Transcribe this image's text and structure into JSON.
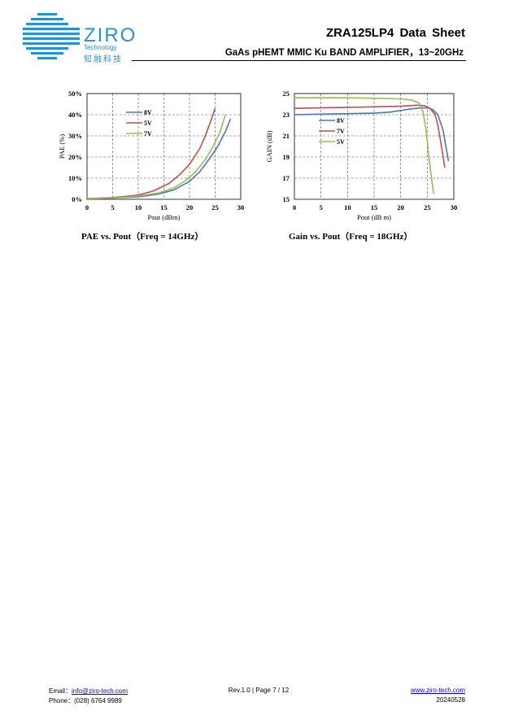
{
  "header": {
    "brand": "ZIRO",
    "brand_sub_en": "Technology",
    "brand_sub_cn": "知融科技",
    "title": "ZRA125LP4  Data  Sheet",
    "subtitle": "GaAs pHEMT MMIC Ku BAND AMPLIFIER，13~20GHz",
    "accent_color": "#2a8fd0"
  },
  "chart_data": [
    {
      "type": "line",
      "caption": "PAE vs. Pout（Freq = 14GHz）",
      "xlabel": "Pout (dBm)",
      "ylabel": "PAE (%)",
      "xlim": [
        0,
        30
      ],
      "ylim": [
        0,
        50
      ],
      "xticks": [
        "0",
        "5",
        "10",
        "15",
        "20",
        "25",
        "30"
      ],
      "yticks": [
        "0%",
        "10%",
        "20%",
        "30%",
        "40%",
        "50%"
      ],
      "grid": "dashed",
      "legend": "top-center",
      "series": [
        {
          "name": "8V",
          "color": "#4a78b5",
          "x": [
            0,
            5,
            10,
            14,
            17,
            20,
            22,
            24,
            25.5,
            27,
            28
          ],
          "y": [
            0.3,
            0.6,
            1.2,
            2.5,
            4.5,
            8.5,
            13,
            19.5,
            25,
            32,
            38
          ]
        },
        {
          "name": "5V",
          "color": "#c0504d",
          "x": [
            0,
            5,
            10,
            13,
            16,
            18,
            20,
            22,
            23,
            24,
            25
          ],
          "y": [
            0.3,
            0.8,
            2,
            4,
            7.5,
            11.5,
            16.5,
            24,
            29.5,
            36,
            43
          ]
        },
        {
          "name": "7V",
          "color": "#9bbb59",
          "x": [
            0,
            5,
            10,
            14,
            17,
            19,
            21,
            23,
            24.5,
            26,
            27
          ],
          "y": [
            0.3,
            0.6,
            1.5,
            3,
            5.5,
            8.5,
            12.5,
            18.5,
            24.5,
            32,
            40
          ]
        }
      ]
    },
    {
      "type": "line",
      "caption": "Gain vs. Pout（Freq = 18GHz）",
      "xlabel": "Pout (dB m)",
      "ylabel": "GAIN (dB)",
      "xlim": [
        0,
        30
      ],
      "ylim": [
        15,
        25
      ],
      "xticks": [
        "0",
        "5",
        "10",
        "15",
        "20",
        "25",
        "30"
      ],
      "yticks": [
        "15",
        "17",
        "19",
        "21",
        "23",
        "25"
      ],
      "grid": "dashed",
      "legend": "center-left",
      "series": [
        {
          "name": "8V",
          "color": "#4a78b5",
          "x": [
            0,
            5,
            10,
            15,
            18,
            20,
            22,
            24,
            25,
            26,
            27,
            28,
            28.5,
            29
          ],
          "y": [
            23.0,
            23.05,
            23.1,
            23.15,
            23.25,
            23.4,
            23.55,
            23.65,
            23.65,
            23.5,
            23.0,
            21.5,
            20.0,
            18.6
          ]
        },
        {
          "name": "7V",
          "color": "#c0504d",
          "x": [
            0,
            5,
            10,
            15,
            20,
            23,
            24.5,
            25.5,
            26.5,
            27,
            27.5,
            28,
            28.3
          ],
          "y": [
            23.6,
            23.65,
            23.7,
            23.75,
            23.8,
            23.9,
            23.85,
            23.6,
            23.0,
            22.0,
            20.5,
            19.0,
            18.0
          ]
        },
        {
          "name": "5V",
          "color": "#9bbb59",
          "x": [
            0,
            5,
            10,
            15,
            20,
            22,
            23.5,
            24.2,
            24.8,
            25.3,
            25.8,
            26.2
          ],
          "y": [
            24.6,
            24.6,
            24.6,
            24.55,
            24.5,
            24.4,
            24.1,
            23.3,
            21.5,
            19.0,
            17.0,
            15.5
          ]
        }
      ]
    }
  ],
  "footer": {
    "email_label": "Email：",
    "email": "info@ziro-tech.com",
    "phone": "Phone：(028) 6764 9989",
    "rev": "Rev.1.0 | Page 7 / 12",
    "website": "www.ziro-tech.com",
    "date": "20240528"
  }
}
